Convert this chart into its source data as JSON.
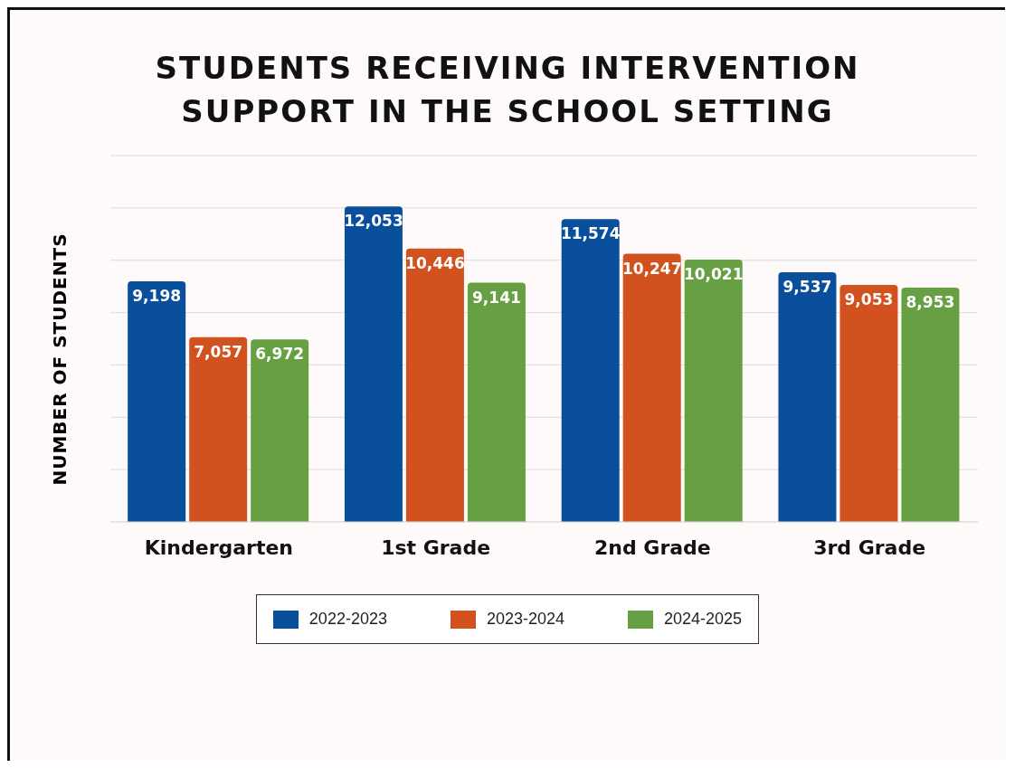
{
  "chart_data": {
    "type": "bar",
    "title": "STUDENTS RECEIVING INTERVENTION\nSUPPORT IN THE SCHOOL SETTING",
    "ylabel": "NUMBER OF STUDENTS",
    "categories": [
      "Kindergarten",
      "1st Grade",
      "2nd Grade",
      "3rd Grade"
    ],
    "series": [
      {
        "name": "2022-2023",
        "color": "#0a4f9c",
        "values": [
          9198,
          12053,
          11574,
          9537
        ],
        "value_labels": [
          "9,198",
          "12,053",
          "11,574",
          "9,537"
        ]
      },
      {
        "name": "2023-2024",
        "color": "#d2521f",
        "values": [
          7057,
          10446,
          10247,
          9053
        ],
        "value_labels": [
          "7,057",
          "10,446",
          "10,247",
          "9,053"
        ]
      },
      {
        "name": "2024-2025",
        "color": "#67a043",
        "values": [
          6972,
          9141,
          10021,
          8953
        ],
        "value_labels": [
          "6,972",
          "9,141",
          "10,021",
          "8,953"
        ]
      }
    ],
    "tick_labels": "x",
    "grid": "y",
    "legend": "bottom"
  }
}
